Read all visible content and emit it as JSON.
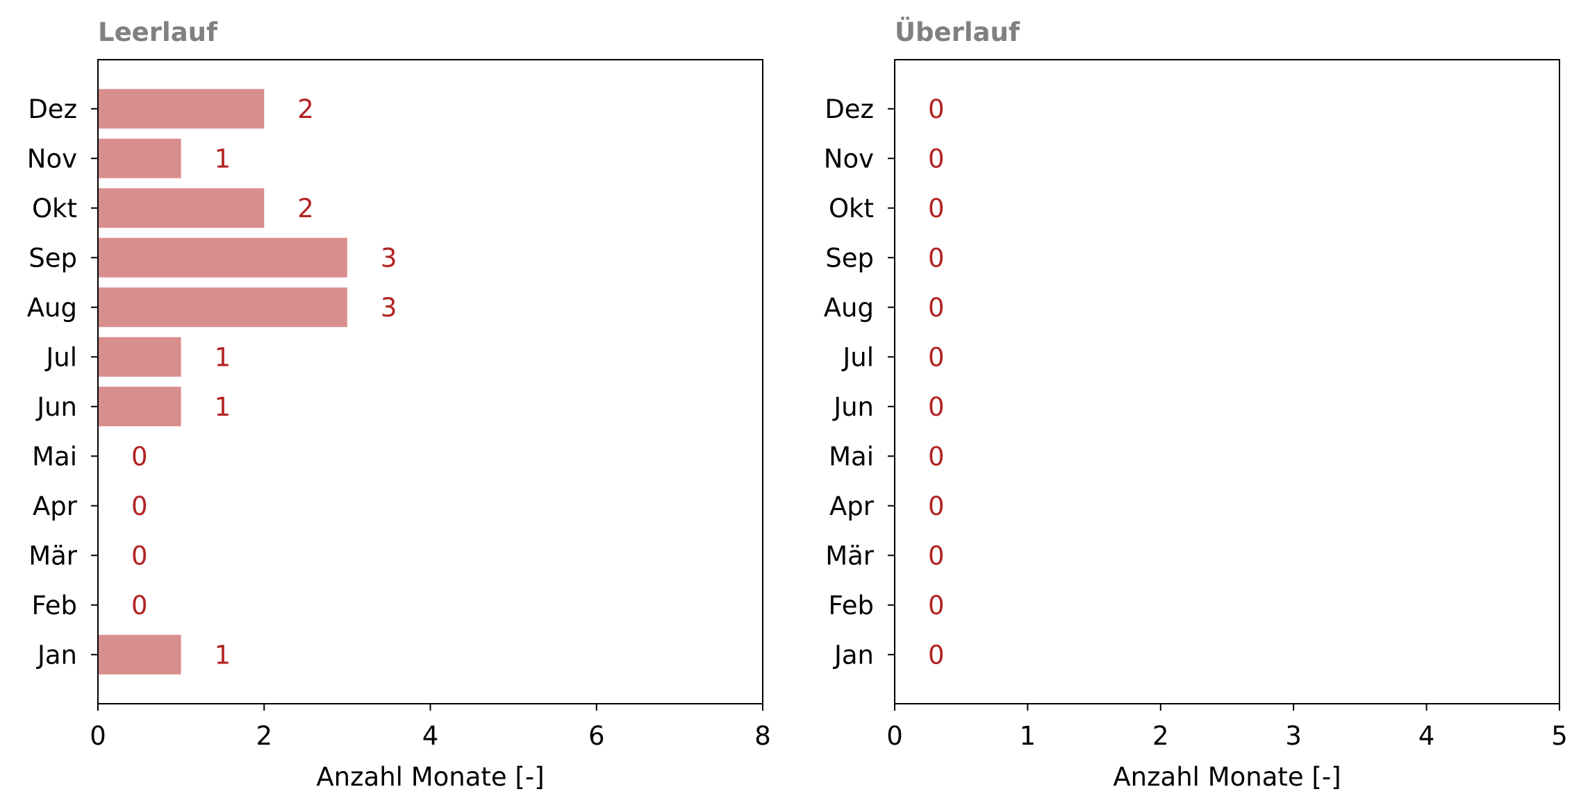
{
  "chart_data": [
    {
      "type": "bar",
      "orientation": "horizontal",
      "title": "Leerlauf",
      "xlabel": "Anzahl Monate [-]",
      "ylabel": "",
      "xlim": [
        0,
        8
      ],
      "xticks": [
        0,
        2,
        4,
        6,
        8
      ],
      "categories": [
        "Jan",
        "Feb",
        "Mär",
        "Apr",
        "Mai",
        "Jun",
        "Jul",
        "Aug",
        "Sep",
        "Okt",
        "Nov",
        "Dez"
      ],
      "values": [
        1,
        0,
        0,
        0,
        0,
        1,
        1,
        3,
        3,
        2,
        1,
        2
      ],
      "bar_color": "#d98e8e",
      "label_color": "#b22222",
      "grid": false,
      "legend": "none"
    },
    {
      "type": "bar",
      "orientation": "horizontal",
      "title": "Überlauf",
      "xlabel": "Anzahl Monate [-]",
      "ylabel": "",
      "xlim": [
        0,
        5
      ],
      "xticks": [
        0,
        1,
        2,
        3,
        4,
        5
      ],
      "categories": [
        "Jan",
        "Feb",
        "Mär",
        "Apr",
        "Mai",
        "Jun",
        "Jul",
        "Aug",
        "Sep",
        "Okt",
        "Nov",
        "Dez"
      ],
      "values": [
        0,
        0,
        0,
        0,
        0,
        0,
        0,
        0,
        0,
        0,
        0,
        0
      ],
      "bar_color": "#d98e8e",
      "label_color": "#b22222",
      "grid": false,
      "legend": "none"
    }
  ]
}
